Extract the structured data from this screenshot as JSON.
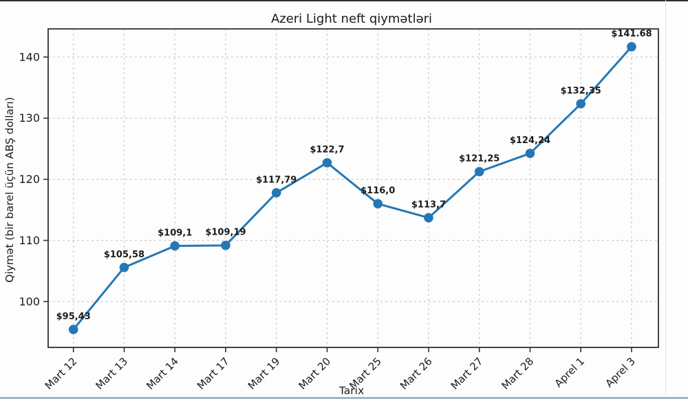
{
  "chart_data": {
    "type": "line",
    "title": "Azeri Light neft qiymətləri",
    "xlabel": "Tarix",
    "ylabel": "Qiymət (bir barel üçün ABŞ dolları)",
    "categories": [
      "Mart 12",
      "Mart 13",
      "Mart 14",
      "Mart 17",
      "Mart 19",
      "Mart 20",
      "Mart 25",
      "Mart 26",
      "Mart 27",
      "Mart 28",
      "Aprel 1",
      "Aprel 3"
    ],
    "values": [
      95.43,
      105.58,
      109.1,
      109.19,
      117.79,
      122.7,
      116.0,
      113.7,
      121.25,
      124.24,
      132.35,
      141.68
    ],
    "point_labels": [
      "$95,43",
      "$105,58",
      "$109,1",
      "$109,19",
      "$117,79",
      "$122,7",
      "$116,0",
      "$113,7",
      "$121,25",
      "$124,24",
      "$132,35",
      "$141.68"
    ],
    "yticks": [
      100,
      110,
      120,
      130,
      140
    ],
    "ylim": [
      92.5,
      144.6
    ],
    "grid": true,
    "grid_style": "dashed",
    "legend": "none",
    "marker": "circle",
    "colors": {
      "line": "#2577b4",
      "marker": "#2577b4",
      "grid": "#cccccc",
      "spine": "#303030",
      "text": "#1b1b1b"
    }
  }
}
